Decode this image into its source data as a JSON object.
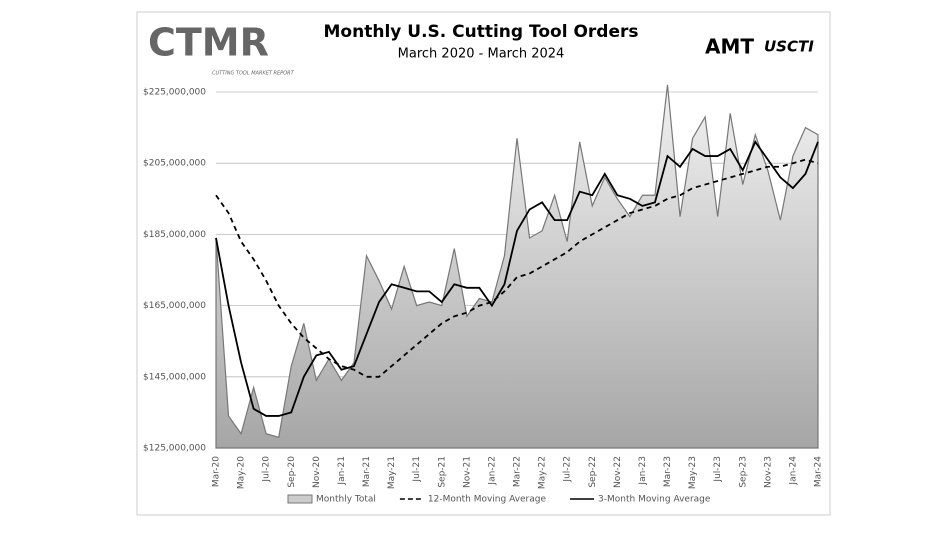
{
  "logos": {
    "ctmr": "CTMR",
    "ctmr_sub": "CUTTING TOOL MARKET REPORT",
    "amt": "AMT",
    "uscti": "USCTI"
  },
  "chart_data": {
    "type": "line",
    "title": "Monthly U.S. Cutting Tool Orders",
    "subtitle": "March 2020 - March 2024",
    "categories": [
      "Mar-20",
      null,
      "May-20",
      null,
      "Jul-20",
      null,
      "Sep-20",
      null,
      "Nov-20",
      null,
      "Jan-21",
      null,
      "Mar-21",
      null,
      "May-21",
      null,
      "Jul-21",
      null,
      "Sep-21",
      null,
      "Nov-21",
      null,
      "Jan-22",
      null,
      "Mar-22",
      null,
      "May-22",
      null,
      "Jul-22",
      null,
      "Sep-22",
      null,
      "Nov-22",
      null,
      "Jan-23",
      null,
      "Mar-23",
      null,
      "May-23",
      null,
      "Jul-23",
      null,
      "Sep-23",
      null,
      "Nov-23",
      null,
      "Jan-24",
      null,
      "Mar-24"
    ],
    "series": [
      {
        "name": "Monthly Total",
        "color": "#777777",
        "style": "area",
        "values": [
          184000000,
          134000000,
          129000000,
          142000000,
          129000000,
          128000000,
          148000000,
          160000000,
          144000000,
          150000000,
          144000000,
          149000000,
          179000000,
          172000000,
          164000000,
          176000000,
          165000000,
          166000000,
          165000000,
          181000000,
          162000000,
          167000000,
          166000000,
          179000000,
          212000000,
          184000000,
          186000000,
          196000000,
          183000000,
          211000000,
          193000000,
          201000000,
          195000000,
          190000000,
          196000000,
          196000000,
          227000000,
          190000000,
          212000000,
          218000000,
          190000000,
          219000000,
          199000000,
          213000000,
          203000000,
          189000000,
          207000000,
          215000000,
          213000000
        ]
      },
      {
        "name": "12-Month Moving Average",
        "color": "#000000",
        "style": "dashed",
        "values": [
          196000000,
          191000000,
          183000000,
          178000000,
          172000000,
          165000000,
          160000000,
          156000000,
          153000000,
          150000000,
          148000000,
          147000000,
          145000000,
          145000000,
          148000000,
          151000000,
          154000000,
          157000000,
          160000000,
          162000000,
          163000000,
          165000000,
          166000000,
          169000000,
          173000000,
          174000000,
          176000000,
          178000000,
          180000000,
          183000000,
          185000000,
          187000000,
          189000000,
          191000000,
          192000000,
          193000000,
          195000000,
          196000000,
          198000000,
          199000000,
          200000000,
          201000000,
          202000000,
          203000000,
          204000000,
          204000000,
          205000000,
          206000000,
          205000000
        ]
      },
      {
        "name": "3-Month Moving Average",
        "color": "#000000",
        "style": "solid",
        "values": [
          184000000,
          165000000,
          149000000,
          136000000,
          134000000,
          134000000,
          135000000,
          145000000,
          151000000,
          152000000,
          147000000,
          148000000,
          157000000,
          166000000,
          171000000,
          170000000,
          169000000,
          169000000,
          166000000,
          171000000,
          170000000,
          170000000,
          165000000,
          171000000,
          186000000,
          192000000,
          194000000,
          189000000,
          189000000,
          197000000,
          196000000,
          202000000,
          196000000,
          195000000,
          193000000,
          194000000,
          207000000,
          204000000,
          209000000,
          207000000,
          207000000,
          209000000,
          203000000,
          211000000,
          206000000,
          201000000,
          198000000,
          202000000,
          211000000
        ]
      }
    ],
    "ylim": [
      125000000,
      225000000
    ],
    "yticks": [
      {
        "value": 125000000,
        "label": "$125,000,000"
      },
      {
        "value": 145000000,
        "label": "$145,000,000"
      },
      {
        "value": 165000000,
        "label": "$165,000,000"
      },
      {
        "value": 185000000,
        "label": "$185,000,000"
      },
      {
        "value": 205000000,
        "label": "$205,000,000"
      },
      {
        "value": 225000000,
        "label": "$225,000,000"
      }
    ],
    "grid": true,
    "legend": "bottom"
  }
}
